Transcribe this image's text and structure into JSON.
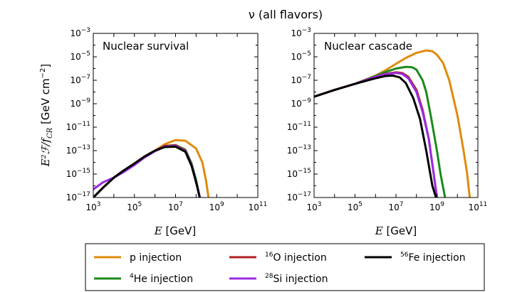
{
  "figure": {
    "title": "ν (all flavors)",
    "ylabel": "E²ℱ/f",
    "ylabel_sub": "CR",
    "ylabel_units": " [GeV cm",
    "ylabel_units_sup": "−2",
    "ylabel_units_end": "]"
  },
  "legend": {
    "items": [
      {
        "iso": "",
        "label": "p injection",
        "color": "#e08a0c"
      },
      {
        "iso": "4",
        "label": "He injection",
        "color": "#1a8a1a"
      },
      {
        "iso": "16",
        "label": "O injection",
        "color": "#b22222"
      },
      {
        "iso": "28",
        "label": "Si injection",
        "color": "#9b2be2"
      },
      {
        "iso": "56",
        "label": "Fe injection",
        "color": "#000000"
      }
    ]
  },
  "chart_data": [
    {
      "type": "line",
      "title": "Nuclear survival",
      "xlabel": "E [GeV]",
      "ylabel": "E²ℱ/f_CR [GeV cm⁻²]",
      "xscale": "log",
      "yscale": "log",
      "xlim": [
        1000,
        100000000000
      ],
      "ylim": [
        1e-17,
        0.001
      ],
      "xticks": [
        1000,
        100000,
        10000000,
        1000000000,
        100000000000
      ],
      "xtick_labels": [
        {
          "base": "10",
          "exp": "3"
        },
        {
          "base": "10",
          "exp": "5"
        },
        {
          "base": "10",
          "exp": "7"
        },
        {
          "base": "10",
          "exp": "9"
        },
        {
          "base": "10",
          "exp": "11"
        }
      ],
      "yticks": [
        1e-17,
        1e-15,
        1e-13,
        1e-11,
        1e-09,
        1e-07,
        1e-05,
        0.001
      ],
      "ytick_labels": [
        {
          "base": "10",
          "exp": "-17"
        },
        {
          "base": "10",
          "exp": "-15"
        },
        {
          "base": "10",
          "exp": "-13"
        },
        {
          "base": "10",
          "exp": "-11"
        },
        {
          "base": "10",
          "exp": "-9"
        },
        {
          "base": "10",
          "exp": "-7"
        },
        {
          "base": "10",
          "exp": "-5"
        },
        {
          "base": "10",
          "exp": "-3"
        }
      ],
      "series": [
        {
          "name": "p injection",
          "color": "#e08a0c",
          "x": [
            1000,
            3000,
            10000,
            30000,
            100000,
            300000,
            1000000,
            3000000,
            10000000,
            30000000,
            100000000,
            200000000,
            300000000,
            400000000
          ],
          "y": [
            1e-17,
            7e-17,
            5e-16,
            2e-15,
            8e-15,
            3e-14,
            1e-13,
            3.5e-13,
            8e-13,
            7e-13,
            1.5e-13,
            1e-14,
            3e-16,
            1e-17
          ]
        },
        {
          "name": "He injection",
          "color": "#1a8a1a",
          "x": [
            1000,
            3000,
            10000,
            30000,
            100000,
            300000,
            1000000,
            3000000,
            10000000,
            30000000,
            60000000,
            100000000,
            150000000
          ],
          "y": [
            1e-17,
            7e-17,
            5e-16,
            2e-15,
            8e-15,
            3e-14,
            1e-13,
            2.5e-13,
            3e-13,
            1.2e-13,
            8e-15,
            3e-16,
            1e-17
          ]
        },
        {
          "name": "O injection",
          "color": "#b22222",
          "x": [
            1000,
            3000,
            10000,
            30000,
            100000,
            300000,
            1000000,
            3000000,
            10000000,
            30000000,
            60000000,
            100000000,
            150000000
          ],
          "y": [
            1e-17,
            7e-17,
            5e-16,
            2e-15,
            8e-15,
            3e-14,
            1e-13,
            2.5e-13,
            2.8e-13,
            1e-13,
            6e-15,
            2e-16,
            1e-17
          ]
        },
        {
          "name": "Si injection",
          "color": "#9b2be2",
          "x": [
            1000,
            3000,
            10000,
            30000,
            100000,
            300000,
            1000000,
            3000000,
            10000000,
            30000000,
            60000000,
            100000000,
            150000000
          ],
          "y": [
            5e-17,
            2e-16,
            5e-16,
            1.5e-15,
            6e-15,
            2.5e-14,
            9e-14,
            2.2e-13,
            2.5e-13,
            9e-14,
            6e-15,
            2e-16,
            1e-17
          ]
        },
        {
          "name": "Fe injection",
          "color": "#000000",
          "x": [
            1000,
            3000,
            10000,
            30000,
            100000,
            300000,
            1000000,
            3000000,
            10000000,
            30000000,
            60000000,
            100000000,
            150000000
          ],
          "y": [
            1e-17,
            7e-17,
            5e-16,
            2e-15,
            8e-15,
            3e-14,
            1e-13,
            2e-13,
            2.2e-13,
            8e-14,
            5e-15,
            2e-16,
            1e-17
          ]
        }
      ]
    },
    {
      "type": "line",
      "title": "Nuclear cascade",
      "xlabel": "E [GeV]",
      "ylabel": "",
      "xscale": "log",
      "yscale": "log",
      "xlim": [
        1000,
        100000000000
      ],
      "ylim": [
        1e-17,
        0.001
      ],
      "xticks": [
        1000,
        100000,
        10000000,
        1000000000,
        100000000000
      ],
      "xtick_labels": [
        {
          "base": "10",
          "exp": "3"
        },
        {
          "base": "10",
          "exp": "5"
        },
        {
          "base": "10",
          "exp": "7"
        },
        {
          "base": "10",
          "exp": "9"
        },
        {
          "base": "10",
          "exp": "11"
        }
      ],
      "yticks": [
        1e-17,
        1e-15,
        1e-13,
        1e-11,
        1e-09,
        1e-07,
        1e-05,
        0.001
      ],
      "ytick_labels": [
        {
          "base": "10",
          "exp": "-17"
        },
        {
          "base": "10",
          "exp": "-15"
        },
        {
          "base": "10",
          "exp": "-13"
        },
        {
          "base": "10",
          "exp": "-11"
        },
        {
          "base": "10",
          "exp": "-9"
        },
        {
          "base": "10",
          "exp": "-7"
        },
        {
          "base": "10",
          "exp": "-5"
        },
        {
          "base": "10",
          "exp": "-3"
        }
      ],
      "series": [
        {
          "name": "p injection",
          "color": "#e08a0c",
          "x": [
            1000,
            10000,
            100000,
            1000000,
            3000000,
            10000000,
            30000000,
            100000000,
            300000000,
            600000000,
            1000000000,
            2000000000,
            4000000000,
            10000000000,
            20000000000,
            30000000000,
            40000000000
          ],
          "y": [
            4e-09,
            1.5e-08,
            5e-08,
            2.5e-07,
            7e-07,
            2.5e-06,
            8e-06,
            2.2e-05,
            3.5e-05,
            3e-05,
            1.5e-05,
            3e-06,
            1e-07,
            1e-10,
            1e-13,
            1e-15,
            1e-17
          ]
        },
        {
          "name": "He injection",
          "color": "#1a8a1a",
          "x": [
            1000,
            10000,
            100000,
            1000000,
            3000000,
            10000000,
            30000000,
            60000000,
            100000000,
            200000000,
            300000000,
            500000000,
            1000000000,
            1500000000,
            2500000000
          ],
          "y": [
            4e-09,
            1.5e-08,
            5e-08,
            2.3e-07,
            5e-07,
            1e-06,
            1.4e-06,
            1.3e-06,
            8e-07,
            1e-07,
            1e-08,
            1e-10,
            1e-13,
            1e-15,
            1e-17
          ]
        },
        {
          "name": "O injection",
          "color": "#b22222",
          "x": [
            1000,
            10000,
            100000,
            1000000,
            3000000,
            10000000,
            20000000,
            40000000,
            100000000,
            200000000,
            400000000,
            700000000,
            1000000000
          ],
          "y": [
            4e-09,
            1.5e-08,
            5e-08,
            2e-07,
            3.5e-07,
            4.8e-07,
            4.2e-07,
            2e-07,
            1.5e-08,
            3e-10,
            1e-12,
            1e-15,
            1e-17
          ]
        },
        {
          "name": "Si injection",
          "color": "#9b2be2",
          "x": [
            1000,
            10000,
            100000,
            1000000,
            3000000,
            10000000,
            20000000,
            40000000,
            100000000,
            200000000,
            400000000,
            700000000,
            1000000000
          ],
          "y": [
            4e-09,
            1.5e-08,
            5e-08,
            2e-07,
            3.3e-07,
            4.2e-07,
            3.5e-07,
            1.5e-07,
            1e-08,
            2e-10,
            1e-12,
            1e-15,
            1e-17
          ]
        },
        {
          "name": "Fe injection",
          "color": "#000000",
          "x": [
            1000,
            10000,
            100000,
            1000000,
            3000000,
            7000000,
            15000000,
            30000000,
            70000000,
            150000000,
            300000000,
            600000000,
            900000000
          ],
          "y": [
            4e-09,
            1.5e-08,
            5e-08,
            1.5e-07,
            2.3e-07,
            2.5e-07,
            1.8e-07,
            6e-08,
            3e-09,
            5e-11,
            1e-13,
            1e-16,
            1e-17
          ]
        }
      ]
    }
  ]
}
